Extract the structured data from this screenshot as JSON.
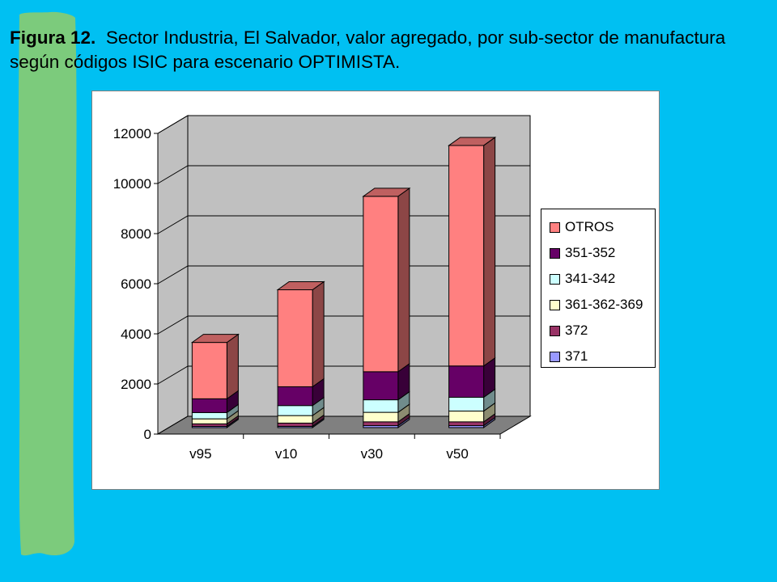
{
  "caption": {
    "bold": "Figura 12.",
    "text": "Sector Industria, El Salvador, valor agregado, por sub-sector de manufactura según códigos ISIC para escenario OPTIMISTA."
  },
  "colors": {
    "background": "#00c0f2",
    "ribbon": "#7ccb7c",
    "plot_back_wall": "#c0c0c0",
    "plot_floor": "#808080"
  },
  "chart_data": {
    "type": "bar",
    "stacked": true,
    "three_d": true,
    "categories": [
      "v95",
      "v10",
      "v30",
      "v50"
    ],
    "ylim": [
      0,
      12000
    ],
    "yticks": [
      "0",
      "2000",
      "4000",
      "6000",
      "8000",
      "10000",
      "12000"
    ],
    "ytick_values": [
      0,
      2000,
      4000,
      6000,
      8000,
      10000,
      12000
    ],
    "grid": true,
    "legend_position": "right",
    "series": [
      {
        "name": "371",
        "color": "#9999ff",
        "values": [
          50,
          50,
          80,
          80
        ]
      },
      {
        "name": "372",
        "color": "#993366",
        "values": [
          100,
          130,
          150,
          150
        ]
      },
      {
        "name": "361-362-369",
        "color": "#ffffcc",
        "values": [
          200,
          300,
          380,
          430
        ]
      },
      {
        "name": "341-342",
        "color": "#ccffff",
        "values": [
          250,
          400,
          500,
          550
        ]
      },
      {
        "name": "351-352",
        "color": "#660066",
        "values": [
          550,
          750,
          1120,
          1250
        ]
      },
      {
        "name": "OTROS",
        "color": "#ff8080",
        "values": [
          2250,
          3870,
          7000,
          8800
        ]
      }
    ],
    "legend_order": [
      "OTROS",
      "351-352",
      "341-342",
      "361-362-369",
      "372",
      "371"
    ]
  }
}
